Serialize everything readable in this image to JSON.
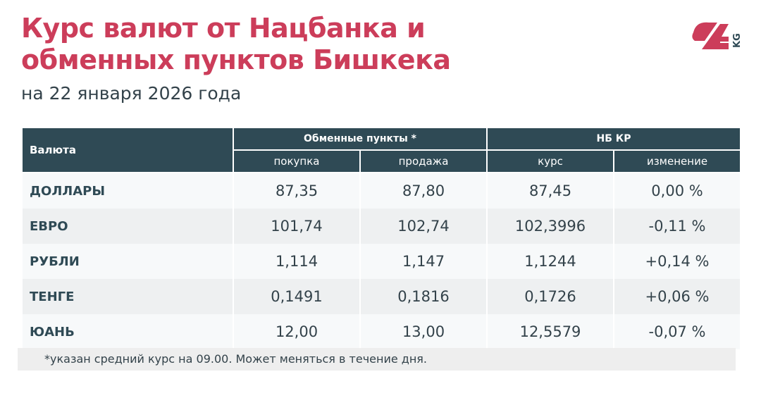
{
  "title": "Курс валют от Нацбанка и обменных пунктов Бишкека",
  "subtitle": "на 22 января 2026 года",
  "logo": {
    "text": "24",
    "suffix": "KG",
    "color": "#cc3d5a",
    "suffix_color": "#2f4a55"
  },
  "colors": {
    "header_bg": "#2f4a55",
    "title": "#cc3d5a"
  },
  "table": {
    "currency_header": "Валюта",
    "group1": "Обменные пункты *",
    "group2": "НБ КР",
    "subheaders": [
      "покупка",
      "продажа",
      "курс",
      "изменение"
    ],
    "rows": [
      {
        "name": "ДОЛЛАРЫ",
        "buy": "87,35",
        "sell": "87,80",
        "rate": "87,45",
        "change": "0,00 %"
      },
      {
        "name": "ЕВРО",
        "buy": "101,74",
        "sell": "102,74",
        "rate": "102,3996",
        "change": "-0,11 %"
      },
      {
        "name": "РУБЛИ",
        "buy": "1,114",
        "sell": "1,147",
        "rate": "1,1244",
        "change": "+0,14 %"
      },
      {
        "name": "ТЕНГЕ",
        "buy": "0,1491",
        "sell": "0,1816",
        "rate": "0,1726",
        "change": "+0,06 %"
      },
      {
        "name": "ЮАНЬ",
        "buy": "12,00",
        "sell": "13,00",
        "rate": "12,5579",
        "change": "-0,07 %"
      }
    ]
  },
  "footnote": "*указан средний курс на 09.00. Может меняться в течение дня."
}
